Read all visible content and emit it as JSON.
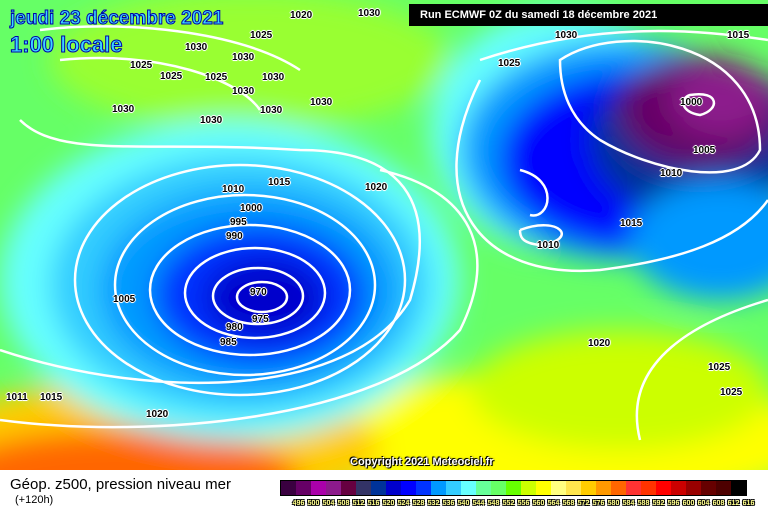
{
  "header": {
    "date": "jeudi 23 décembre 2021",
    "time": "1:00 locale",
    "run": "Run ECMWF 0Z du samedi 18 décembre 2021"
  },
  "copyright": "Copyright 2021 Meteociel.fr",
  "footer": {
    "title": "Géop. z500, pression niveau mer",
    "lead": "(+120h)"
  },
  "legend": {
    "values": [
      "496",
      "500",
      "504",
      "508",
      "512",
      "516",
      "520",
      "524",
      "528",
      "532",
      "536",
      "540",
      "544",
      "548",
      "552",
      "556",
      "560",
      "564",
      "568",
      "572",
      "576",
      "580",
      "584",
      "588",
      "592",
      "596",
      "600",
      "604",
      "608",
      "612",
      "616"
    ],
    "colors": [
      "#3a0040",
      "#660066",
      "#aa00aa",
      "#8c1a8c",
      "#660040",
      "#333366",
      "#003399",
      "#0000cc",
      "#0000ff",
      "#0033ff",
      "#0099ff",
      "#33ccff",
      "#66ffff",
      "#66ff99",
      "#66ff66",
      "#66ff00",
      "#ccff00",
      "#ffff00",
      "#ffff80",
      "#ffe64d",
      "#ffcc00",
      "#ff9900",
      "#ff6600",
      "#ff3333",
      "#ff3300",
      "#ff0000",
      "#cc0000",
      "#990000",
      "#660000",
      "#4d0000",
      "#000000"
    ]
  },
  "isobars": [
    "1025",
    "1020",
    "1030",
    "1030",
    "1025",
    "1025",
    "1025",
    "1030",
    "1030",
    "1030",
    "1030",
    "1030",
    "1030",
    "1030",
    "1030",
    "1025",
    "1015",
    "1000",
    "1005",
    "1010",
    "1015",
    "1010",
    "1010",
    "1015",
    "1020",
    "1000",
    "995",
    "990",
    "1005",
    "970",
    "975",
    "980",
    "985",
    "1020",
    "1025",
    "1025",
    "1011",
    "1015",
    "1020"
  ]
}
